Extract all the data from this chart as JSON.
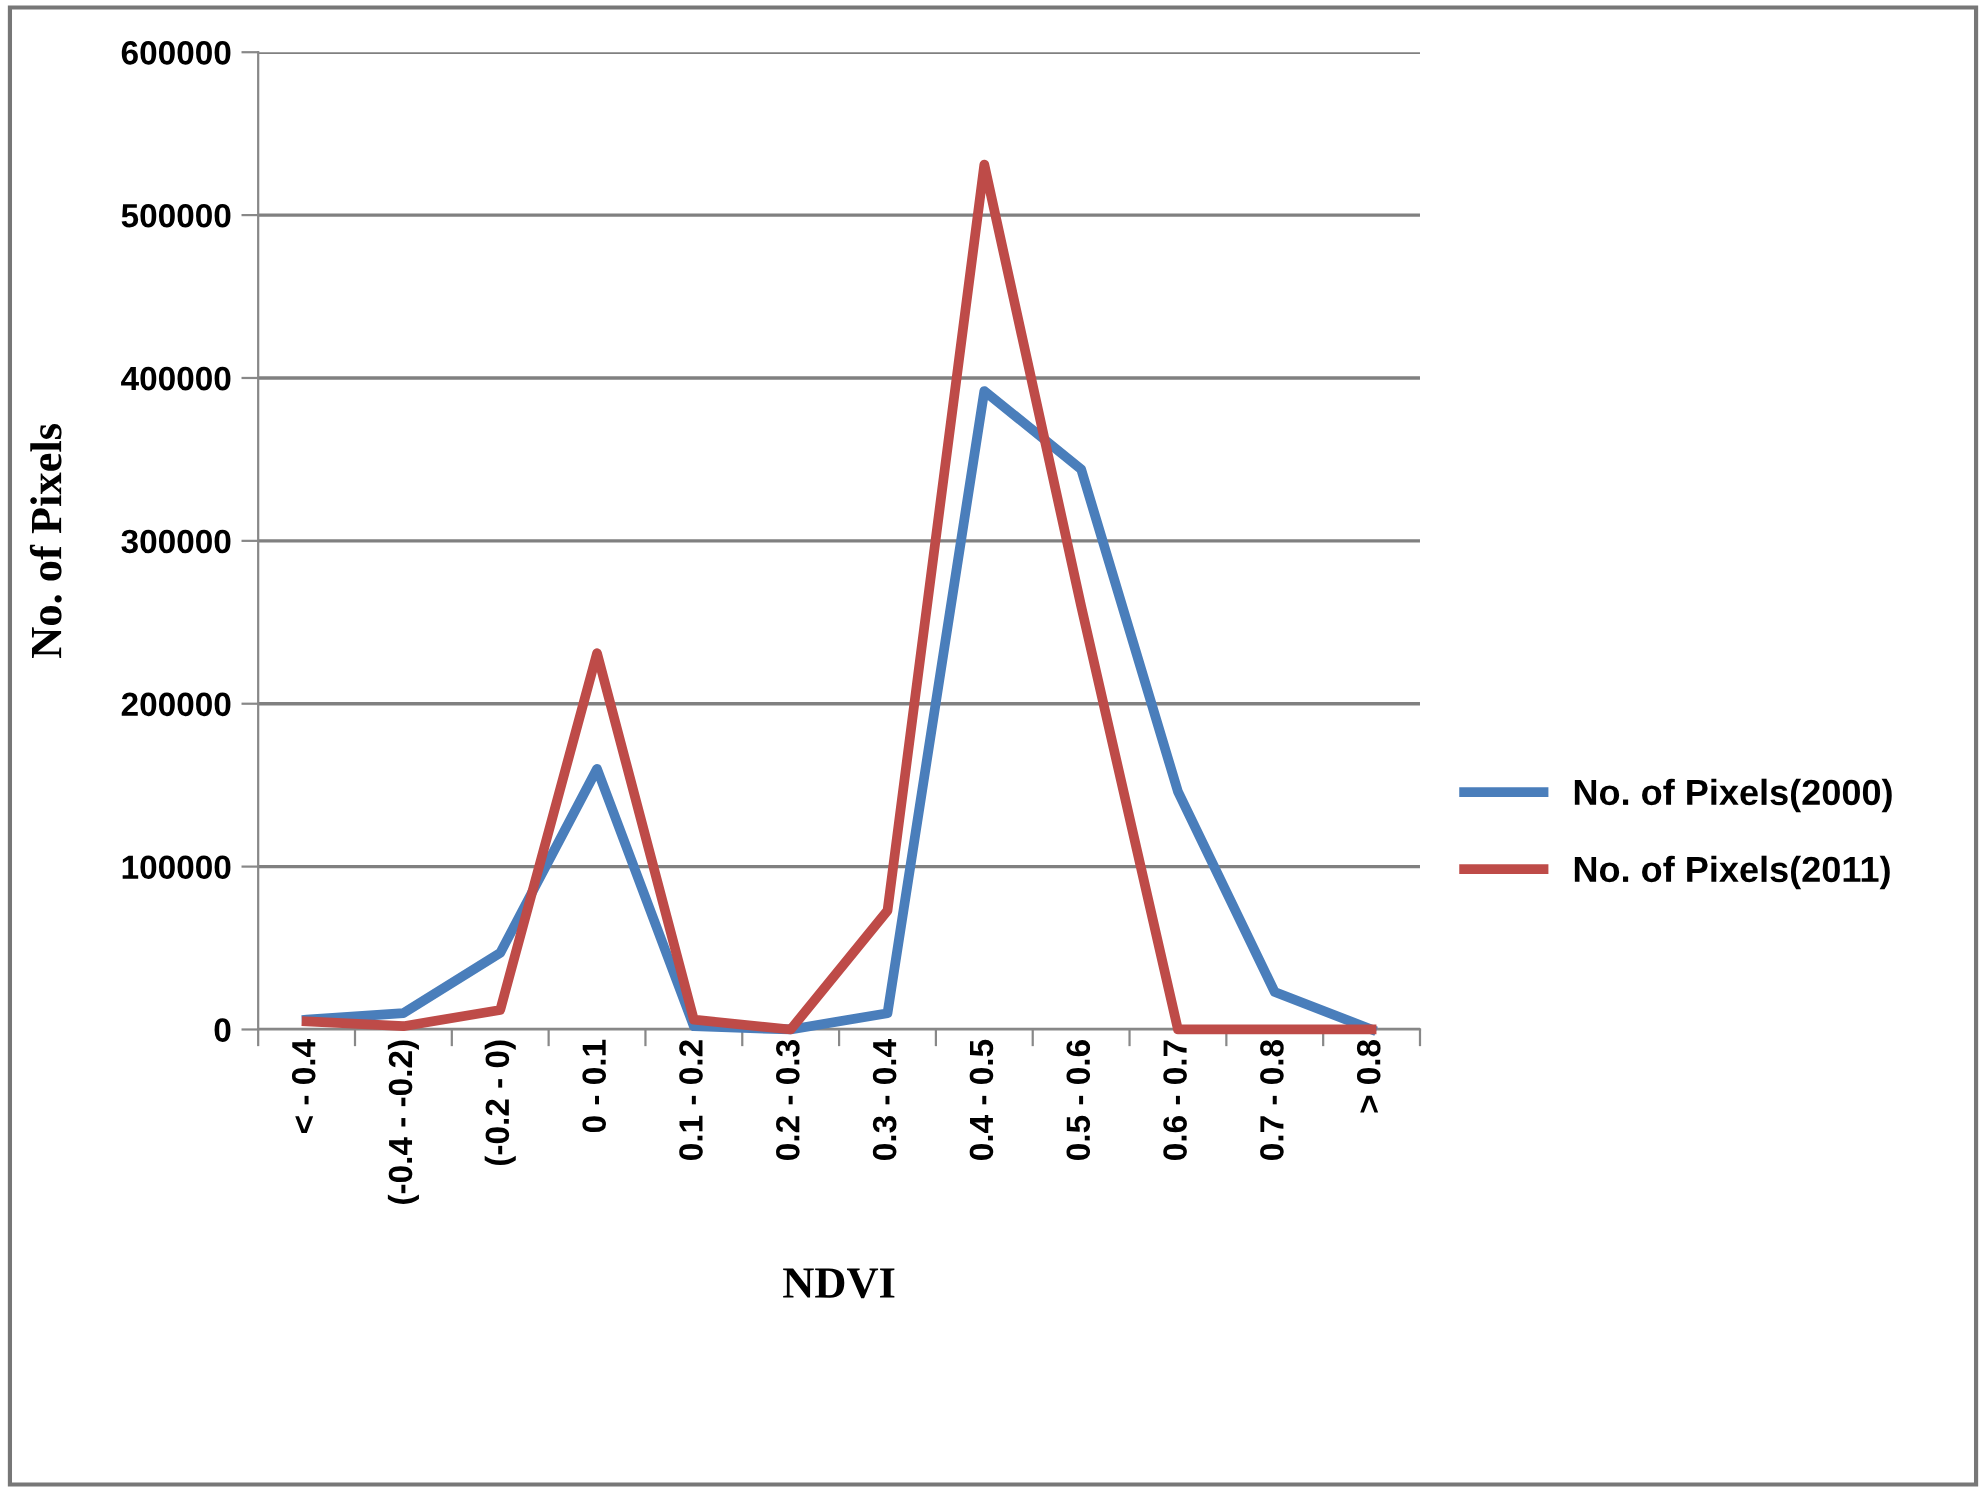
{
  "chart_data": {
    "type": "line",
    "xlabel": "NDVI",
    "ylabel": "No. of Pixels",
    "categories": [
      "< - 0.4",
      "(-0.4 - -0.2)",
      "(-0.2 - 0)",
      "0 - 0.1",
      "0.1 - 0.2",
      "0.2 - 0.3",
      "0.3 - 0.4",
      "0.4 - 0.5",
      "0.5 - 0.6",
      "0.6 - 0.7",
      "0.7 - 0.8",
      "> 0.8"
    ],
    "series": [
      {
        "name": "No. of Pixels(2000)",
        "color": "#4a7ebb",
        "values": [
          6000,
          10000,
          47000,
          160000,
          2000,
          0,
          10000,
          392000,
          344000,
          146000,
          23000,
          0
        ]
      },
      {
        "name": "No. of Pixels(2011)",
        "color": "#be4b48",
        "values": [
          5000,
          2000,
          12000,
          231000,
          6000,
          0,
          73000,
          531000,
          260000,
          0,
          0,
          0
        ]
      }
    ],
    "ylim": [
      0,
      600000
    ],
    "yticks": [
      0,
      100000,
      200000,
      300000,
      400000,
      500000,
      600000
    ],
    "grid": "y",
    "legend": "right",
    "marker": "none",
    "line_style": "solid"
  }
}
